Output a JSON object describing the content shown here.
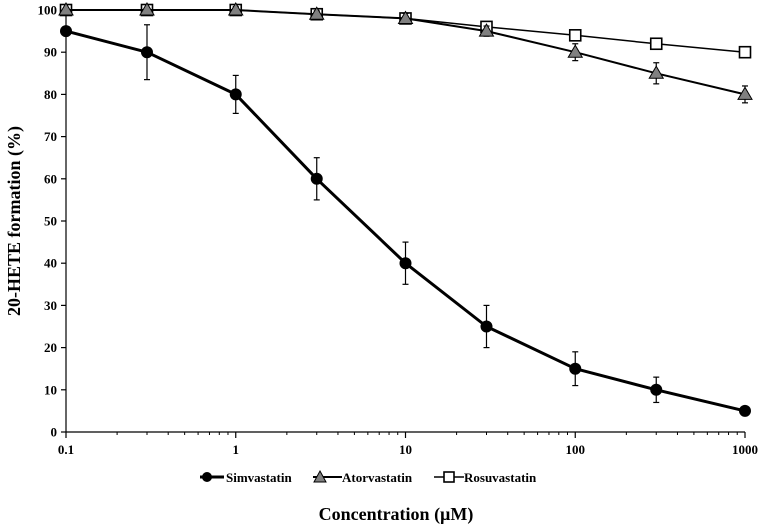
{
  "chart_data": {
    "type": "line",
    "xscale": "log",
    "xlim": [
      0.1,
      1000
    ],
    "ylim": [
      0,
      100
    ],
    "xlabel": "Concentration (µM)",
    "ylabel": "20-HETE formation (%)",
    "x_tick_labels": [
      "0.1",
      "1",
      "10",
      "100",
      "1000"
    ],
    "x_ticks": [
      0.1,
      1,
      10,
      100,
      1000
    ],
    "y_ticks": [
      0,
      10,
      20,
      30,
      40,
      50,
      60,
      70,
      80,
      90,
      100
    ],
    "y_tick_labels": [
      "0",
      "10",
      "20",
      "30",
      "40",
      "50",
      "60",
      "70",
      "80",
      "90",
      "100"
    ],
    "grid": false,
    "legend_position": "bottom",
    "x": [
      0.1,
      0.3,
      1,
      3,
      10,
      30,
      100,
      300,
      1000
    ],
    "series": [
      {
        "name": "Simvastatin",
        "marker": "circle",
        "color": "#000000",
        "values": [
          95,
          90,
          80,
          60,
          40,
          25,
          15,
          10,
          5
        ],
        "errors": [
          0,
          6.5,
          4.5,
          5,
          5,
          5,
          4,
          3,
          0
        ]
      },
      {
        "name": "Atorvastatin",
        "marker": "triangle",
        "color": "#808080",
        "values": [
          100,
          100,
          100,
          99,
          98,
          95,
          90,
          85,
          80
        ],
        "errors": [
          0,
          0,
          0.8,
          0.8,
          1.2,
          1.2,
          2,
          2.5,
          2
        ]
      },
      {
        "name": "Rosuvastatin",
        "marker": "square-open",
        "color": "#ffffff",
        "values": [
          100,
          100,
          100,
          99,
          98,
          96,
          94,
          92,
          90
        ],
        "errors": [
          0,
          0,
          0,
          0,
          0,
          0,
          0,
          0,
          0
        ]
      }
    ]
  }
}
